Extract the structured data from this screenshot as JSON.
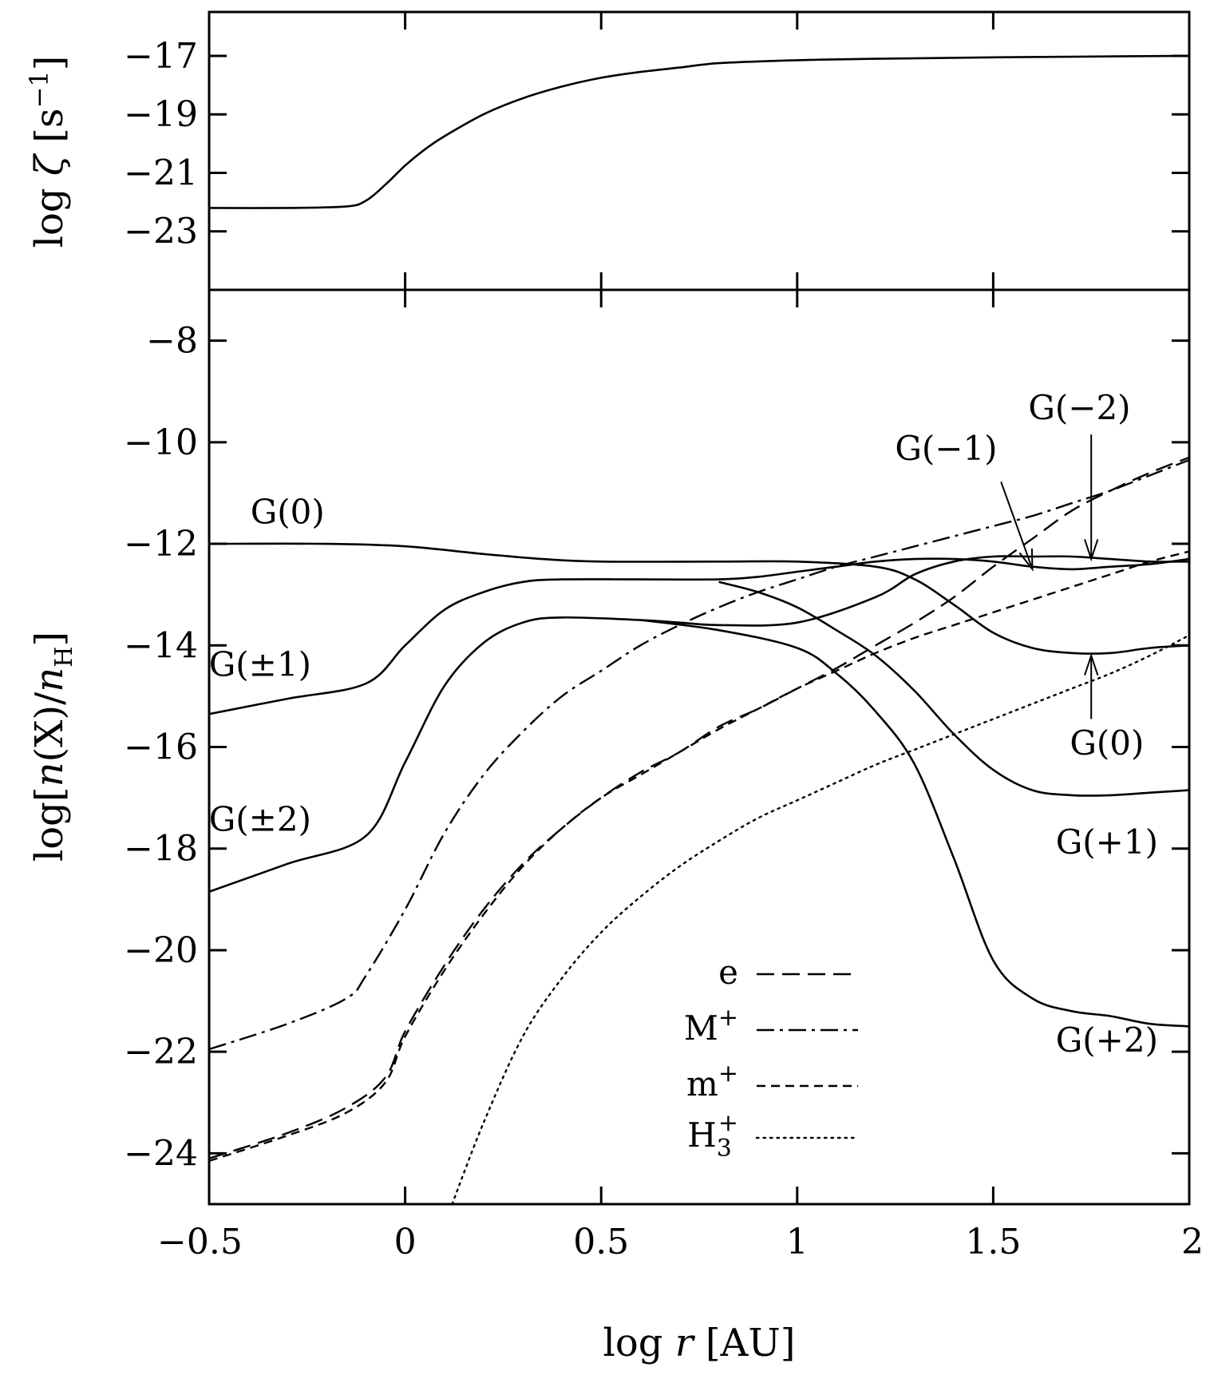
{
  "chart_data": [
    {
      "type": "line",
      "panel": "top",
      "ylabel": "log ζ [s⁻¹]",
      "ylim": [
        -25,
        -15.5
      ],
      "xlim": [
        -0.5,
        2
      ],
      "yticks": [
        -17,
        -19,
        -21,
        -23
      ],
      "yticklabels": [
        "−17",
        "−19",
        "−21",
        "−23"
      ],
      "series": [
        {
          "name": "zeta",
          "style": "solid",
          "x": [
            -0.5,
            -0.3,
            -0.15,
            -0.1,
            -0.05,
            0,
            0.05,
            0.1,
            0.2,
            0.3,
            0.4,
            0.5,
            0.6,
            0.7,
            0.8,
            1.0,
            1.2,
            1.5,
            2.0
          ],
          "y": [
            -22.2,
            -22.2,
            -22.15,
            -21.95,
            -21.4,
            -20.75,
            -20.2,
            -19.75,
            -19.0,
            -18.45,
            -18.05,
            -17.75,
            -17.55,
            -17.4,
            -17.25,
            -17.15,
            -17.1,
            -17.05,
            -17.0
          ]
        }
      ]
    },
    {
      "type": "line",
      "panel": "bottom",
      "xlabel": "log r [AU]",
      "ylabel": "log[n(X)/nH]",
      "xlim": [
        -0.5,
        2
      ],
      "ylim": [
        -25,
        -7
      ],
      "xticks": [
        -0.5,
        0,
        0.5,
        1,
        1.5,
        2
      ],
      "xticklabels": [
        "−0.5",
        "0",
        "0.5",
        "1",
        "1.5",
        "2"
      ],
      "yticks": [
        -8,
        -10,
        -12,
        -14,
        -16,
        -18,
        -20,
        -22,
        -24
      ],
      "yticklabels": [
        "−8",
        "−10",
        "−12",
        "−14",
        "−16",
        "−18",
        "−20",
        "−22",
        "−24"
      ],
      "series": [
        {
          "name": "G(0)",
          "style": "solid",
          "x": [
            -0.5,
            -0.2,
            0.0,
            0.2,
            0.35,
            0.5,
            0.8,
            1.0,
            1.2,
            1.3,
            1.4,
            1.5,
            1.6,
            1.7,
            1.8,
            1.9,
            2.0
          ],
          "y": [
            -12.0,
            -12.0,
            -12.05,
            -12.2,
            -12.3,
            -12.35,
            -12.35,
            -12.35,
            -12.45,
            -12.7,
            -13.2,
            -13.75,
            -14.05,
            -14.15,
            -14.15,
            -14.05,
            -14.0
          ]
        },
        {
          "name": "G(±1)",
          "style": "solid",
          "x": [
            -0.5,
            -0.3,
            -0.1,
            0.0,
            0.1,
            0.2,
            0.3,
            0.4,
            0.6,
            0.8,
            0.9,
            1.0,
            1.1,
            1.2,
            1.3,
            1.4,
            1.5,
            1.6,
            1.7,
            1.8,
            1.9,
            2.0
          ],
          "y": [
            -15.35,
            -15.05,
            -14.75,
            -14.0,
            -13.3,
            -12.95,
            -12.75,
            -12.7,
            -12.7,
            -12.7,
            -12.65,
            -12.55,
            -12.45,
            -12.35,
            -12.3,
            -12.3,
            -12.35,
            -12.45,
            -12.5,
            -12.45,
            -12.4,
            -12.3
          ]
        },
        {
          "name": "G(+1)",
          "style": "solid",
          "x": [
            0.8,
            0.9,
            1.0,
            1.1,
            1.2,
            1.3,
            1.4,
            1.5,
            1.6,
            1.7,
            1.8,
            1.9,
            2.0
          ],
          "y": [
            -12.75,
            -12.95,
            -13.25,
            -13.7,
            -14.2,
            -14.9,
            -15.75,
            -16.45,
            -16.85,
            -16.95,
            -16.95,
            -16.9,
            -16.85
          ]
        },
        {
          "name": "G(±2)",
          "style": "solid",
          "x": [
            -0.5,
            -0.3,
            -0.1,
            0.0,
            0.1,
            0.2,
            0.3,
            0.4,
            0.6,
            0.7,
            0.8,
            1.0,
            1.2,
            1.3,
            1.4,
            1.5,
            1.6,
            1.7,
            1.8,
            1.9,
            2.0
          ],
          "y": [
            -18.85,
            -18.3,
            -17.75,
            -16.3,
            -14.8,
            -13.95,
            -13.55,
            -13.45,
            -13.5,
            -13.55,
            -13.6,
            -13.55,
            -13.05,
            -12.6,
            -12.35,
            -12.25,
            -12.25,
            -12.25,
            -12.3,
            -12.35,
            -12.35
          ]
        },
        {
          "name": "G(+2)",
          "style": "solid",
          "x": [
            0.6,
            0.8,
            1.0,
            1.1,
            1.2,
            1.3,
            1.4,
            1.5,
            1.6,
            1.7,
            1.8,
            1.9,
            2.0
          ],
          "y": [
            -13.5,
            -13.7,
            -14.05,
            -14.55,
            -15.3,
            -16.35,
            -18.2,
            -20.2,
            -20.95,
            -21.2,
            -21.3,
            -21.45,
            -21.5
          ]
        },
        {
          "name": "e",
          "style": "dashed",
          "x": [
            -0.5,
            -0.3,
            -0.15,
            -0.05,
            0.0,
            0.1,
            0.2,
            0.3,
            0.4,
            0.5,
            0.6,
            0.7,
            0.8,
            0.9,
            1.0,
            1.1,
            1.2,
            1.3,
            1.4,
            1.5,
            1.6,
            1.7,
            1.8,
            1.9,
            2.0
          ],
          "y": [
            -24.1,
            -23.6,
            -23.1,
            -22.5,
            -21.6,
            -20.3,
            -19.2,
            -18.3,
            -17.6,
            -17.0,
            -16.5,
            -16.1,
            -15.6,
            -15.25,
            -14.85,
            -14.45,
            -14.0,
            -13.55,
            -13.05,
            -12.45,
            -11.9,
            -11.35,
            -10.95,
            -10.6,
            -10.3
          ]
        },
        {
          "name": "M+",
          "style": "dashdot",
          "x": [
            -0.5,
            -0.3,
            -0.15,
            -0.1,
            0.0,
            0.1,
            0.2,
            0.3,
            0.4,
            0.5,
            0.6,
            0.7,
            0.8,
            0.9,
            1.0,
            1.1,
            1.2,
            1.3,
            1.4,
            1.5,
            1.6,
            1.7,
            1.8,
            1.9,
            2.0
          ],
          "y": [
            -21.95,
            -21.45,
            -20.95,
            -20.5,
            -19.2,
            -17.7,
            -16.55,
            -15.7,
            -15.0,
            -14.5,
            -14.0,
            -13.6,
            -13.25,
            -12.95,
            -12.7,
            -12.45,
            -12.25,
            -12.05,
            -11.85,
            -11.65,
            -11.45,
            -11.2,
            -10.95,
            -10.65,
            -10.35
          ]
        },
        {
          "name": "m+",
          "style": "shortdash",
          "x": [
            -0.5,
            -0.3,
            -0.15,
            -0.05,
            0.0,
            0.1,
            0.2,
            0.3,
            0.4,
            0.5,
            0.6,
            0.7,
            0.8,
            0.9,
            1.0,
            1.1,
            1.2,
            1.3,
            1.4,
            1.5,
            1.6,
            1.7,
            1.8,
            1.9,
            2.0
          ],
          "y": [
            -24.15,
            -23.65,
            -23.2,
            -22.6,
            -21.7,
            -20.4,
            -19.3,
            -18.35,
            -17.6,
            -17.0,
            -16.55,
            -16.1,
            -15.65,
            -15.25,
            -14.85,
            -14.5,
            -14.15,
            -13.85,
            -13.6,
            -13.35,
            -13.1,
            -12.85,
            -12.6,
            -12.35,
            -12.15
          ]
        },
        {
          "name": "H3+",
          "style": "dotted",
          "x": [
            0.12,
            0.2,
            0.3,
            0.4,
            0.5,
            0.6,
            0.7,
            0.8,
            0.9,
            1.0,
            1.1,
            1.2,
            1.3,
            1.4,
            1.5,
            1.6,
            1.7,
            1.8,
            1.9,
            2.0
          ],
          "y": [
            -25.0,
            -23.4,
            -21.7,
            -20.55,
            -19.65,
            -18.95,
            -18.35,
            -17.85,
            -17.4,
            -17.05,
            -16.7,
            -16.35,
            -16.05,
            -15.75,
            -15.45,
            -15.15,
            -14.85,
            -14.55,
            -14.2,
            -13.8
          ]
        }
      ],
      "curve_labels": [
        {
          "key": "g0_left",
          "text": "G(0)",
          "x": -0.3,
          "y": -11.6
        },
        {
          "key": "gpm1",
          "text": "G(±1)",
          "x": -0.37,
          "y": -14.6
        },
        {
          "key": "gpm2",
          "text": "G(±2)",
          "x": -0.37,
          "y": -17.65
        },
        {
          "key": "gm1",
          "text": "G(−1)",
          "x": 1.38,
          "y": -10.35
        },
        {
          "key": "gm2",
          "text": "G(−2)",
          "x": 1.72,
          "y": -9.55
        },
        {
          "key": "g0_right",
          "text": "G(0)",
          "x": 1.79,
          "y": -16.15
        },
        {
          "key": "gp1",
          "text": "G(+1)",
          "x": 1.79,
          "y": -18.1
        },
        {
          "key": "gp2",
          "text": "G(+2)",
          "x": 1.79,
          "y": -22.0
        }
      ],
      "arrows": [
        {
          "from": [
            1.52,
            -10.78
          ],
          "to": [
            1.6,
            -12.5
          ]
        },
        {
          "from": [
            1.75,
            -9.85
          ],
          "to": [
            1.75,
            -12.3
          ]
        },
        {
          "from": [
            1.75,
            -15.45
          ],
          "to": [
            1.75,
            -14.2
          ]
        }
      ],
      "legend": {
        "placement": "bottom-center",
        "entries": [
          {
            "key": "e",
            "label": "e",
            "style": "dashed"
          },
          {
            "key": "M",
            "label": "M",
            "sup": "+",
            "style": "dashdot"
          },
          {
            "key": "m",
            "label": "m",
            "sup": "+",
            "style": "shortdash"
          },
          {
            "key": "H3",
            "label": "H",
            "sub": "3",
            "sup": "+",
            "style": "dotted"
          }
        ]
      }
    }
  ]
}
